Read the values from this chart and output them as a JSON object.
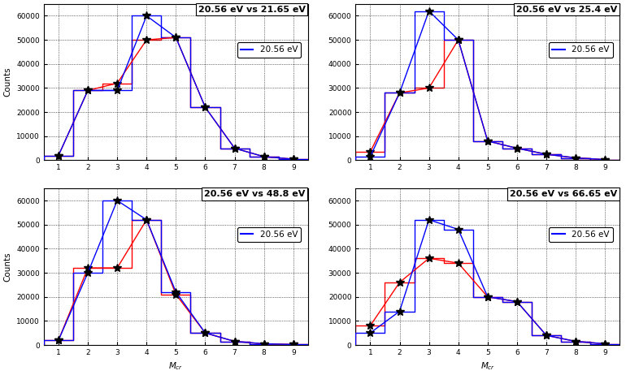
{
  "subplots": [
    {
      "title": "20.56 eV vs 21.65 eV",
      "xlim": [
        0.5,
        9.5
      ],
      "ylim": [
        0,
        65000
      ],
      "xticks": [
        1,
        2,
        3,
        4,
        5,
        6,
        7,
        8,
        9
      ],
      "yticks": [
        0,
        10000,
        20000,
        30000,
        40000,
        50000,
        60000
      ],
      "blue_centers": [
        1,
        2,
        3,
        4,
        5,
        6,
        7,
        8,
        9
      ],
      "blue_vals": [
        2000,
        29000,
        29000,
        60000,
        51000,
        22000,
        5000,
        1500,
        500
      ],
      "red_centers": [
        1,
        2,
        3,
        4,
        5,
        6,
        7,
        8,
        9
      ],
      "red_vals": [
        2000,
        29000,
        32000,
        50000,
        51000,
        22000,
        5000,
        1500,
        500
      ],
      "legend_label": "20.56 eV",
      "show_xlabel": false,
      "show_ylabel": true
    },
    {
      "title": "20.56 eV vs 25.4 eV",
      "xlim": [
        0.5,
        9.5
      ],
      "ylim": [
        0,
        65000
      ],
      "xticks": [
        1,
        2,
        3,
        4,
        5,
        6,
        7,
        8,
        9
      ],
      "yticks": [
        0,
        10000,
        20000,
        30000,
        40000,
        50000,
        60000
      ],
      "blue_centers": [
        1,
        2,
        3,
        4,
        5,
        6,
        7,
        8,
        9
      ],
      "blue_vals": [
        1500,
        28000,
        62000,
        50000,
        8000,
        5000,
        2500,
        1000,
        300
      ],
      "red_centers": [
        1,
        2,
        3,
        4,
        5,
        6,
        7,
        8,
        9
      ],
      "red_vals": [
        3500,
        28000,
        30000,
        50000,
        8000,
        5000,
        2500,
        1000,
        300
      ],
      "legend_label": "20.56 eV",
      "show_xlabel": false,
      "show_ylabel": false
    },
    {
      "title": "20.56 eV vs 48.8 eV",
      "xlim": [
        0.5,
        9.5
      ],
      "ylim": [
        0,
        65000
      ],
      "xticks": [
        1,
        2,
        3,
        4,
        5,
        6,
        7,
        8,
        9
      ],
      "yticks": [
        0,
        10000,
        20000,
        30000,
        40000,
        50000,
        60000
      ],
      "blue_centers": [
        1,
        2,
        3,
        4,
        5,
        6,
        7,
        8,
        9
      ],
      "blue_vals": [
        2000,
        30000,
        60000,
        52000,
        22000,
        5000,
        1500,
        500,
        200
      ],
      "red_centers": [
        1,
        2,
        3,
        4,
        5,
        6,
        7,
        8,
        9
      ],
      "red_vals": [
        2000,
        32000,
        32000,
        52000,
        21000,
        5000,
        1500,
        500,
        200
      ],
      "legend_label": "20.56 eV",
      "show_xlabel": true,
      "show_ylabel": true
    },
    {
      "title": "20.56 eV vs 66.65 eV",
      "xlim": [
        0.5,
        9.5
      ],
      "ylim": [
        0,
        65000
      ],
      "xticks": [
        1,
        2,
        3,
        4,
        5,
        6,
        7,
        8,
        9
      ],
      "yticks": [
        0,
        10000,
        20000,
        30000,
        40000,
        50000,
        60000
      ],
      "blue_centers": [
        1,
        2,
        3,
        4,
        5,
        6,
        7,
        8,
        9
      ],
      "blue_vals": [
        5000,
        14000,
        52000,
        48000,
        20000,
        18000,
        4000,
        1500,
        500
      ],
      "red_centers": [
        1,
        2,
        3,
        4,
        5,
        6,
        7,
        8,
        9
      ],
      "red_vals": [
        8000,
        26000,
        36000,
        34000,
        20000,
        18000,
        4000,
        1500,
        500
      ],
      "legend_label": "20.56 eV",
      "show_xlabel": true,
      "show_ylabel": false
    }
  ],
  "blue_color": "#0000FF",
  "red_color": "#FF0000",
  "black_color": "#000000",
  "bg_color": "#FFFFFF",
  "title_fontsize": 8,
  "tick_fontsize": 6.5,
  "label_fontsize": 7.5,
  "legend_fontsize": 7.5,
  "marker": "*",
  "marker_size": 7
}
